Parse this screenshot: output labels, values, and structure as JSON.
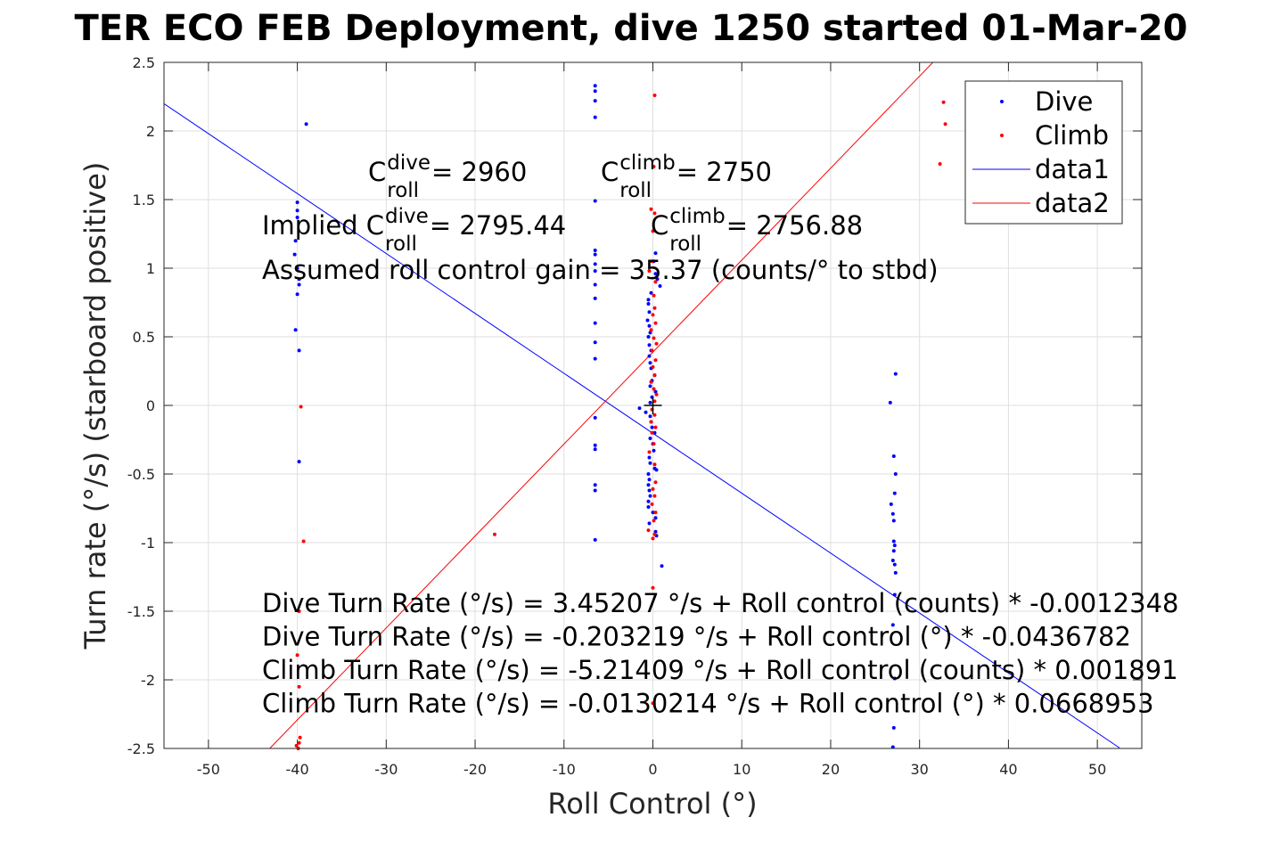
{
  "chart_data": {
    "type": "scatter",
    "title": "TER ECO FEB Deployment, dive 1250 started 01-Mar-20",
    "xlabel": "Roll Control (°)",
    "ylabel": "Turn rate (°/s) (starboard positive)",
    "xlim": [
      -55,
      55
    ],
    "ylim": [
      -2.5,
      2.5
    ],
    "xticks": [
      -50,
      -40,
      -30,
      -20,
      -10,
      0,
      10,
      20,
      30,
      40,
      50
    ],
    "yticks": [
      -2.5,
      -2,
      -1.5,
      -1,
      -0.5,
      0,
      0.5,
      1,
      1.5,
      2,
      2.5
    ],
    "grid": true,
    "legend_position": "top-right",
    "series": [
      {
        "name": "Dive",
        "kind": "points",
        "color": "#0000ff",
        "points": [
          [
            -39.0,
            2.05
          ],
          [
            -40.0,
            1.48
          ],
          [
            -40.0,
            1.42
          ],
          [
            -40.0,
            1.37
          ],
          [
            -40.2,
            1.2
          ],
          [
            -40.3,
            1.1
          ],
          [
            -40.0,
            1.0
          ],
          [
            -39.8,
            0.92
          ],
          [
            -39.8,
            0.88
          ],
          [
            -40.0,
            0.81
          ],
          [
            -40.2,
            0.55
          ],
          [
            -39.8,
            0.4
          ],
          [
            -39.8,
            -0.41
          ],
          [
            -6.5,
            2.33
          ],
          [
            -6.5,
            2.29
          ],
          [
            -6.5,
            2.22
          ],
          [
            -6.5,
            2.1
          ],
          [
            -6.5,
            1.49
          ],
          [
            -6.5,
            1.13
          ],
          [
            -6.5,
            1.1
          ],
          [
            -6.5,
            1.03
          ],
          [
            -6.5,
            0.98
          ],
          [
            -6.5,
            0.88
          ],
          [
            -6.5,
            0.78
          ],
          [
            -6.5,
            0.6
          ],
          [
            -6.5,
            0.46
          ],
          [
            -6.5,
            0.34
          ],
          [
            -6.5,
            -0.09
          ],
          [
            -6.5,
            -0.29
          ],
          [
            -6.5,
            -0.32
          ],
          [
            -6.5,
            -0.58
          ],
          [
            -6.5,
            -0.62
          ],
          [
            -6.5,
            -0.98
          ],
          [
            0.3,
            1.11
          ],
          [
            0.1,
            1.05
          ],
          [
            0.3,
            0.96
          ],
          [
            0.5,
            0.92
          ],
          [
            0.8,
            0.87
          ],
          [
            -0.2,
            0.82
          ],
          [
            -0.5,
            0.77
          ],
          [
            -0.5,
            0.74
          ],
          [
            -0.4,
            0.68
          ],
          [
            -0.6,
            0.62
          ],
          [
            -0.4,
            0.58
          ],
          [
            -0.3,
            0.53
          ],
          [
            -0.5,
            0.5
          ],
          [
            -0.4,
            0.44
          ],
          [
            -0.2,
            0.4
          ],
          [
            -0.4,
            0.36
          ],
          [
            -0.3,
            0.31
          ],
          [
            -0.2,
            0.27
          ],
          [
            0.2,
            0.22
          ],
          [
            -0.1,
            0.18
          ],
          [
            -0.3,
            0.14
          ],
          [
            0.3,
            0.1
          ],
          [
            -0.1,
            0.06
          ],
          [
            -0.3,
            0.02
          ],
          [
            -1.5,
            -0.02
          ],
          [
            -0.8,
            -0.05
          ],
          [
            -0.3,
            -0.08
          ],
          [
            -0.2,
            -0.12
          ],
          [
            -0.1,
            -0.16
          ],
          [
            0.2,
            -0.2
          ],
          [
            -0.3,
            -0.24
          ],
          [
            0.0,
            -0.28
          ],
          [
            0.1,
            -0.33
          ],
          [
            -0.4,
            -0.38
          ],
          [
            -0.3,
            -0.42
          ],
          [
            0.2,
            -0.46
          ],
          [
            0.4,
            -0.47
          ],
          [
            -0.5,
            -0.5
          ],
          [
            -0.4,
            -0.54
          ],
          [
            -0.5,
            -0.58
          ],
          [
            -0.4,
            -0.62
          ],
          [
            -0.3,
            -0.66
          ],
          [
            -0.5,
            -0.7
          ],
          [
            -0.5,
            -0.74
          ],
          [
            0.0,
            -0.78
          ],
          [
            0.3,
            -0.82
          ],
          [
            -0.4,
            -0.86
          ],
          [
            0.3,
            -0.92
          ],
          [
            0.4,
            -0.95
          ],
          [
            1.0,
            -1.17
          ],
          [
            27.3,
            0.23
          ],
          [
            26.7,
            0.02
          ],
          [
            27.1,
            -0.37
          ],
          [
            27.3,
            -0.5
          ],
          [
            27.2,
            -0.64
          ],
          [
            26.8,
            -0.72
          ],
          [
            27.0,
            -0.79
          ],
          [
            27.1,
            -0.84
          ],
          [
            27.1,
            -0.99
          ],
          [
            27.2,
            -1.02
          ],
          [
            27.1,
            -1.06
          ],
          [
            27.0,
            -1.13
          ],
          [
            27.2,
            -1.16
          ],
          [
            27.3,
            -1.22
          ],
          [
            27.2,
            -1.38
          ],
          [
            27.0,
            -1.6
          ],
          [
            27.2,
            -1.99
          ],
          [
            27.1,
            -2.35
          ],
          [
            27.0,
            -2.49
          ]
        ]
      },
      {
        "name": "Climb",
        "kind": "points",
        "color": "#ff0000",
        "points": [
          [
            -39.6,
            -0.01
          ],
          [
            -39.3,
            -0.99
          ],
          [
            -39.8,
            -1.5
          ],
          [
            -40.0,
            -1.82
          ],
          [
            -39.8,
            -2.05
          ],
          [
            -39.7,
            -2.42
          ],
          [
            -39.8,
            -2.46
          ],
          [
            -40.1,
            -2.48
          ],
          [
            -39.9,
            -2.5
          ],
          [
            -17.8,
            -0.94
          ],
          [
            0.2,
            2.26
          ],
          [
            0.1,
            1.74
          ],
          [
            -0.2,
            1.43
          ],
          [
            0.2,
            1.4
          ],
          [
            0.0,
            1.27
          ],
          [
            -0.1,
            1.05
          ],
          [
            -0.4,
            0.98
          ],
          [
            0.3,
            0.9
          ],
          [
            0.1,
            0.8
          ],
          [
            0.2,
            0.71
          ],
          [
            0.0,
            0.66
          ],
          [
            0.3,
            0.6
          ],
          [
            -0.2,
            0.55
          ],
          [
            0.1,
            0.49
          ],
          [
            0.4,
            0.45
          ],
          [
            -0.1,
            0.4
          ],
          [
            0.3,
            0.33
          ],
          [
            0.0,
            0.28
          ],
          [
            0.2,
            0.22
          ],
          [
            -0.2,
            0.17
          ],
          [
            0.1,
            0.12
          ],
          [
            0.4,
            0.08
          ],
          [
            0.2,
            0.03
          ],
          [
            -0.1,
            -0.03
          ],
          [
            0.2,
            -0.07
          ],
          [
            -0.2,
            -0.12
          ],
          [
            0.3,
            -0.16
          ],
          [
            -0.1,
            -0.2
          ],
          [
            0.1,
            -0.28
          ],
          [
            -0.4,
            -0.34
          ],
          [
            0.2,
            -0.43
          ],
          [
            0.3,
            -0.56
          ],
          [
            0.0,
            -0.61
          ],
          [
            0.2,
            -0.66
          ],
          [
            -0.1,
            -0.72
          ],
          [
            0.3,
            -0.78
          ],
          [
            0.1,
            -0.84
          ],
          [
            -0.5,
            -0.91
          ],
          [
            0.2,
            -0.94
          ],
          [
            0.0,
            -0.97
          ],
          [
            0.0,
            -1.33
          ],
          [
            0.0,
            -2.17
          ],
          [
            32.7,
            2.21
          ],
          [
            32.9,
            2.05
          ],
          [
            32.3,
            1.76
          ]
        ]
      },
      {
        "name": "data1",
        "kind": "line",
        "color": "#0000ff",
        "x": [
          -55,
          52.5
        ],
        "y": [
          2.199,
          -2.496
        ]
      },
      {
        "name": "data2",
        "kind": "line",
        "color": "#ff0000",
        "x": [
          -43.1,
          31.5
        ],
        "y": [
          -2.5,
          2.5
        ]
      }
    ],
    "marker": {
      "x": 0,
      "y": 0
    },
    "annotations": {
      "c_roll_dive": {
        "prefix": "C",
        "sup": "dive",
        "sub": "roll",
        "suffix": " = 2960"
      },
      "c_roll_climb": {
        "prefix": "C",
        "sup": "climb",
        "sub": "roll",
        "suffix": " = 2750"
      },
      "implied_dive": {
        "prefix": "Implied C",
        "sup": "dive",
        "sub": "roll",
        "suffix": " = 2795.44"
      },
      "implied_climb": {
        "prefix": "C",
        "sup": "climb",
        "sub": "roll",
        "suffix": " = 2756.88"
      },
      "roll_gain": "Assumed roll control gain = 35.37 (counts/° to stbd)",
      "equations": [
        "Dive Turn Rate (°/s) = 3.45207 °/s + Roll control (counts) * -0.0012348",
        "Dive Turn Rate (°/s) = -0.203219 °/s + Roll control (°) * -0.0436782",
        "Climb Turn Rate (°/s) = -5.21409 °/s + Roll control (counts) * 0.001891",
        "Climb Turn Rate (°/s) = -0.0130214 °/s + Roll control (°) * 0.0668953"
      ]
    }
  }
}
